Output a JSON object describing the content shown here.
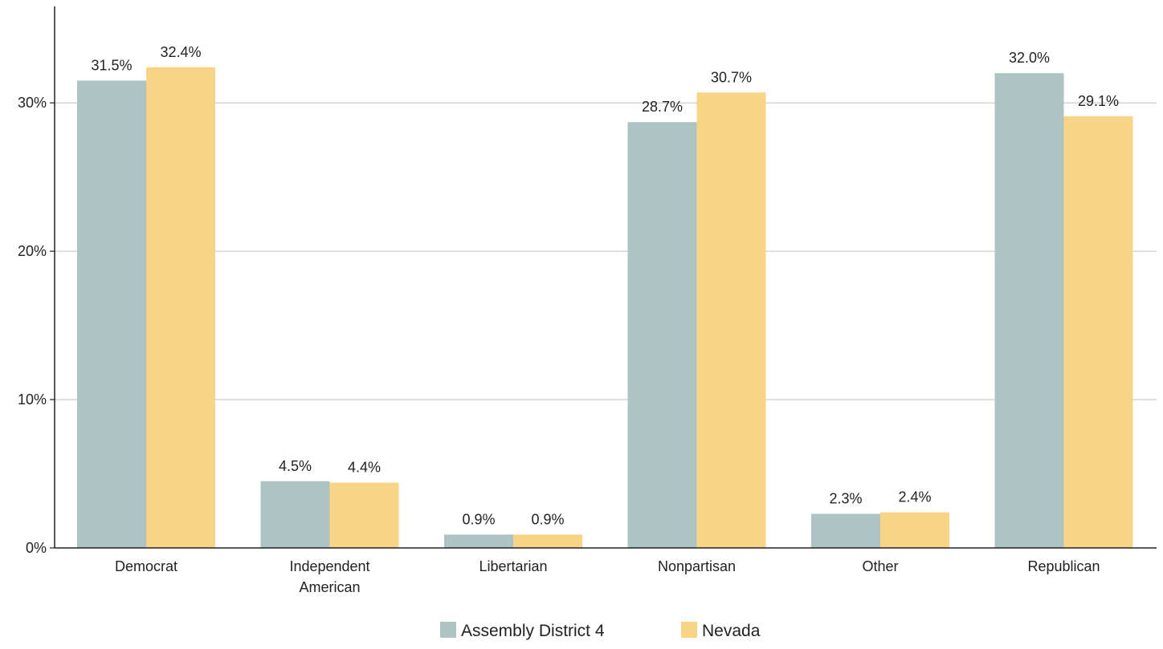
{
  "chart_data": {
    "type": "bar",
    "categories": [
      [
        "Democrat"
      ],
      [
        "Independent",
        "American"
      ],
      [
        "Libertarian"
      ],
      [
        "Nonpartisan"
      ],
      [
        "Other"
      ],
      [
        "Republican"
      ]
    ],
    "series": [
      {
        "name": "Assembly District 4",
        "color": "#aec4c4",
        "values": [
          31.5,
          4.5,
          0.9,
          28.7,
          2.3,
          32.0
        ],
        "labels": [
          "31.5%",
          "4.5%",
          "0.9%",
          "28.7%",
          "2.3%",
          "32.0%"
        ]
      },
      {
        "name": "Nevada",
        "color": "#f8d486",
        "values": [
          32.4,
          4.4,
          0.9,
          30.7,
          2.4,
          29.1
        ],
        "labels": [
          "32.4%",
          "4.4%",
          "0.9%",
          "30.7%",
          "2.4%",
          "29.1%"
        ]
      }
    ],
    "y_ticks": [
      0,
      10,
      20,
      30
    ],
    "y_tick_labels": [
      "0%",
      "10%",
      "20%",
      "30%"
    ],
    "ylim": [
      0,
      36.5
    ],
    "grid": true,
    "gridline_color": "#c0c0c0",
    "legend_position": "bottom-center",
    "title": "",
    "xlabel": "",
    "ylabel": ""
  }
}
